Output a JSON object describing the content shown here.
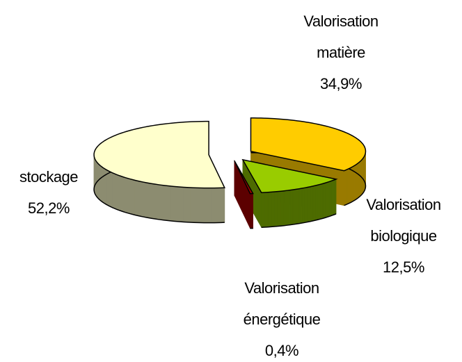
{
  "chart_data": {
    "type": "pie3d",
    "categories": [
      "Valorisation matière",
      "Valorisation biologique",
      "Valorisation énergétique",
      "stockage"
    ],
    "values": [
      34.9,
      12.5,
      0.4,
      52.2
    ],
    "value_labels": [
      "34,9%",
      "12,5%",
      "0,4%",
      "52,2%"
    ],
    "colors": [
      "#ffcc00",
      "#99cc00",
      "#990000",
      "#ffffcc"
    ],
    "side_colors": [
      "#997a00",
      "#4d6b00",
      "#5c0000",
      "#8c8c70"
    ]
  }
}
